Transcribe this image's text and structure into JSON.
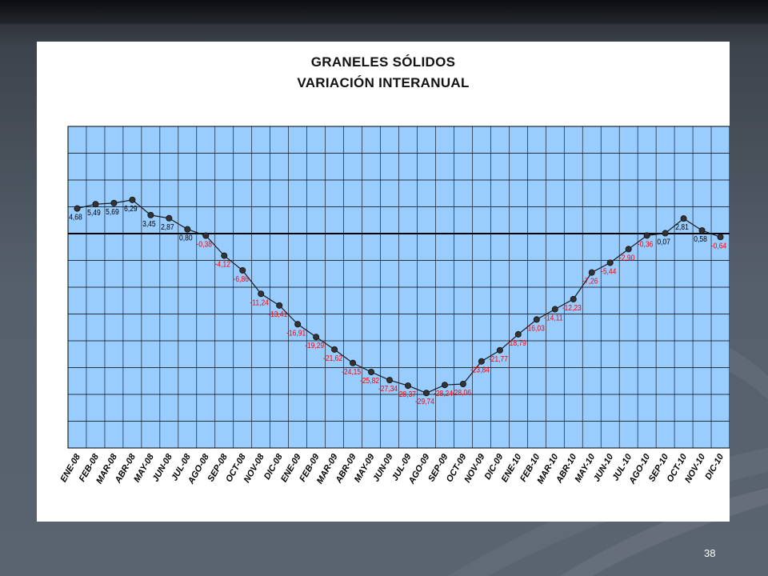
{
  "slide": {
    "page_number": "38"
  },
  "chart_data": {
    "type": "line",
    "title": "GRANELES SÓLIDOS",
    "subtitle": "VARIACIÓN INTERANUAL",
    "categories": [
      "ENE-08",
      "FEB-08",
      "MAR-08",
      "ABR-08",
      "MAY-08",
      "JUN-08",
      "JUL-08",
      "AGO-08",
      "SEP-08",
      "OCT-08",
      "NOV-08",
      "DIC-08",
      "ENE-09",
      "FEB-09",
      "MAR-09",
      "ABR-09",
      "MAY-09",
      "JUN-09",
      "JUL-09",
      "AGO-09",
      "SEP-09",
      "OCT-09",
      "NOV-09",
      "DIC-09",
      "ENE-10",
      "FEB-10",
      "MAR-10",
      "ABR-10",
      "MAY-10",
      "JUN-10",
      "JUL-10",
      "AGO-10",
      "SEP-10",
      "OCT-10",
      "NOV-10",
      "DIC-10"
    ],
    "values": [
      4.68,
      5.49,
      5.69,
      6.29,
      3.45,
      2.87,
      0.8,
      -0.38,
      -4.12,
      -6.86,
      -11.24,
      -13.41,
      -16.91,
      -19.29,
      -21.62,
      -24.15,
      -25.82,
      -27.34,
      -28.37,
      -29.74,
      -28.24,
      -28.06,
      -23.84,
      -21.77,
      -18.79,
      -16.03,
      -14.11,
      -12.23,
      -7.26,
      -5.44,
      -2.9,
      -0.36,
      0.07,
      2.81,
      0.58,
      -0.64
    ],
    "value_labels": [
      "4,68",
      "5,49",
      "5,69",
      "6,29",
      "3,45",
      "2,87",
      "0,80",
      "-0,38",
      "-4,12",
      "-6,86",
      "-11,24",
      "-13,41",
      "-16,91",
      "-19,29",
      "-21,62",
      "-24,15",
      "-25,82",
      "-27,34",
      "-28,37",
      "-29,74",
      "-28,24",
      "-28,06",
      "-23,84",
      "-21,77",
      "-18,79",
      "-16,03",
      "-14,11",
      "-12,23",
      "-7,26",
      "-5,44",
      "-2,90",
      "-0,36",
      "0,07",
      "2,81",
      "0,58",
      "-0,64"
    ],
    "ylim": [
      -40,
      20
    ],
    "grid": true,
    "colors": {
      "plot_background": "#99ccff",
      "line": "#1a1a1a",
      "marker": "#333333",
      "label_positive": "#000000",
      "label_negative": "#ff0000"
    }
  }
}
